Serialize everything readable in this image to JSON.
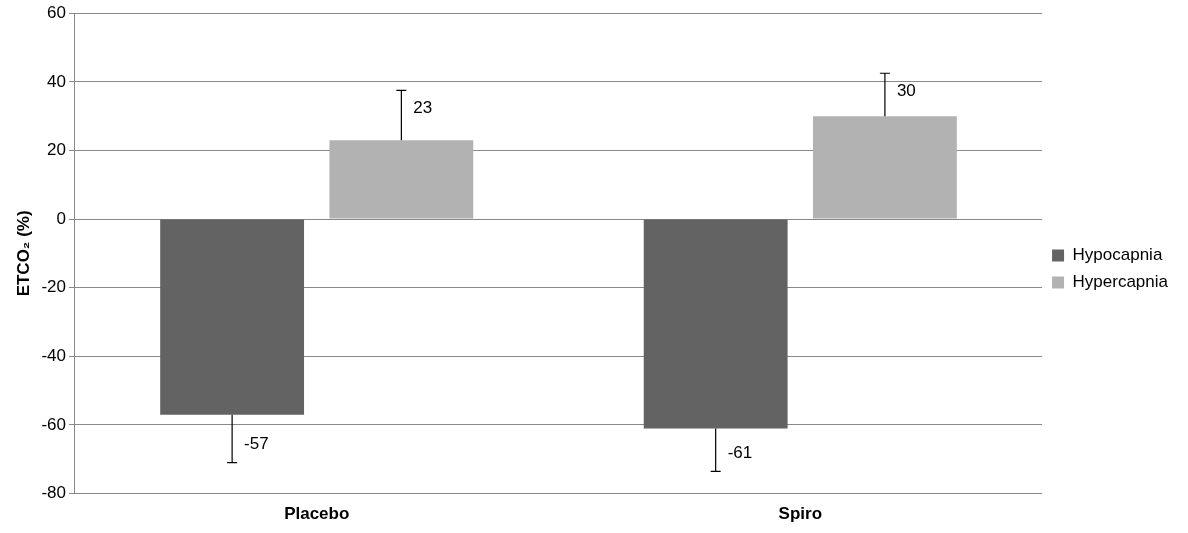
{
  "chart_data": {
    "type": "bar",
    "ylabel": "ETCO₂ (%)",
    "categories": [
      "Placebo",
      "Spiro"
    ],
    "series": [
      {
        "name": "Hypocapnia",
        "color": "#636363",
        "values": [
          -57,
          -61
        ],
        "errors": [
          [
            -71,
            -57
          ],
          [
            -73.5,
            -61
          ]
        ]
      },
      {
        "name": "Hypercapnia",
        "color": "#b2b2b2",
        "values": [
          23,
          30
        ],
        "errors": [
          [
            23,
            37.5
          ],
          [
            30,
            42.5
          ]
        ]
      }
    ],
    "ylim": [
      -80,
      60
    ],
    "yticks": [
      -80,
      -60,
      -40,
      -20,
      0,
      20,
      40,
      60
    ],
    "grid": "y",
    "legend": "right",
    "data_labels": true
  }
}
